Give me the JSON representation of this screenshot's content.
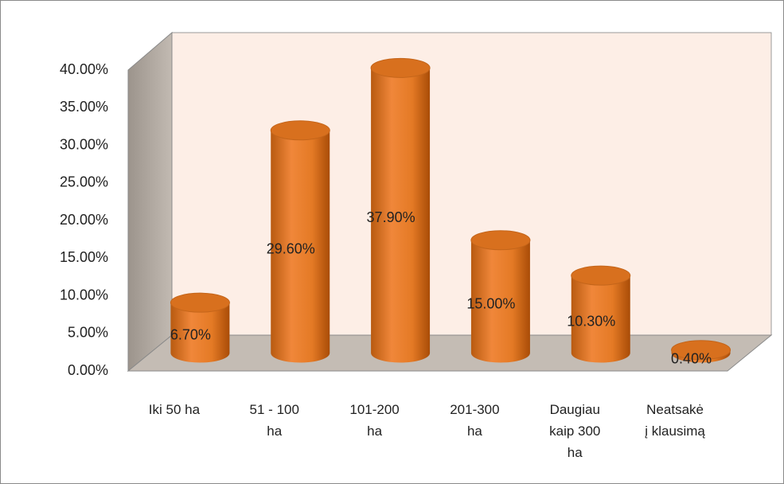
{
  "chart_data": {
    "type": "bar3d",
    "categories": [
      "Iki 50 ha",
      "51 - 100 ha",
      "101-200 ha",
      "201-300 ha",
      "Daugiau kaip 300 ha",
      "Neatsakė į klausimą"
    ],
    "values": [
      6.7,
      29.6,
      37.9,
      15.0,
      10.3,
      0.4
    ],
    "value_labels": [
      "6.70%",
      "29.60%",
      "37.90%",
      "15.00%",
      "10.30%",
      "0.40%"
    ],
    "color": "#f0873a",
    "ylim": [
      0,
      40
    ],
    "yticks": [
      {
        "value": 0,
        "label": "0.00%"
      },
      {
        "value": 5,
        "label": "5.00%"
      },
      {
        "value": 10,
        "label": "10.00%"
      },
      {
        "value": 15,
        "label": "15.00%"
      },
      {
        "value": 20,
        "label": "20.00%"
      },
      {
        "value": 25,
        "label": "25.00%"
      },
      {
        "value": 30,
        "label": "30.00%"
      },
      {
        "value": 35,
        "label": "35.00%"
      },
      {
        "value": 40,
        "label": "40.00%"
      }
    ]
  }
}
